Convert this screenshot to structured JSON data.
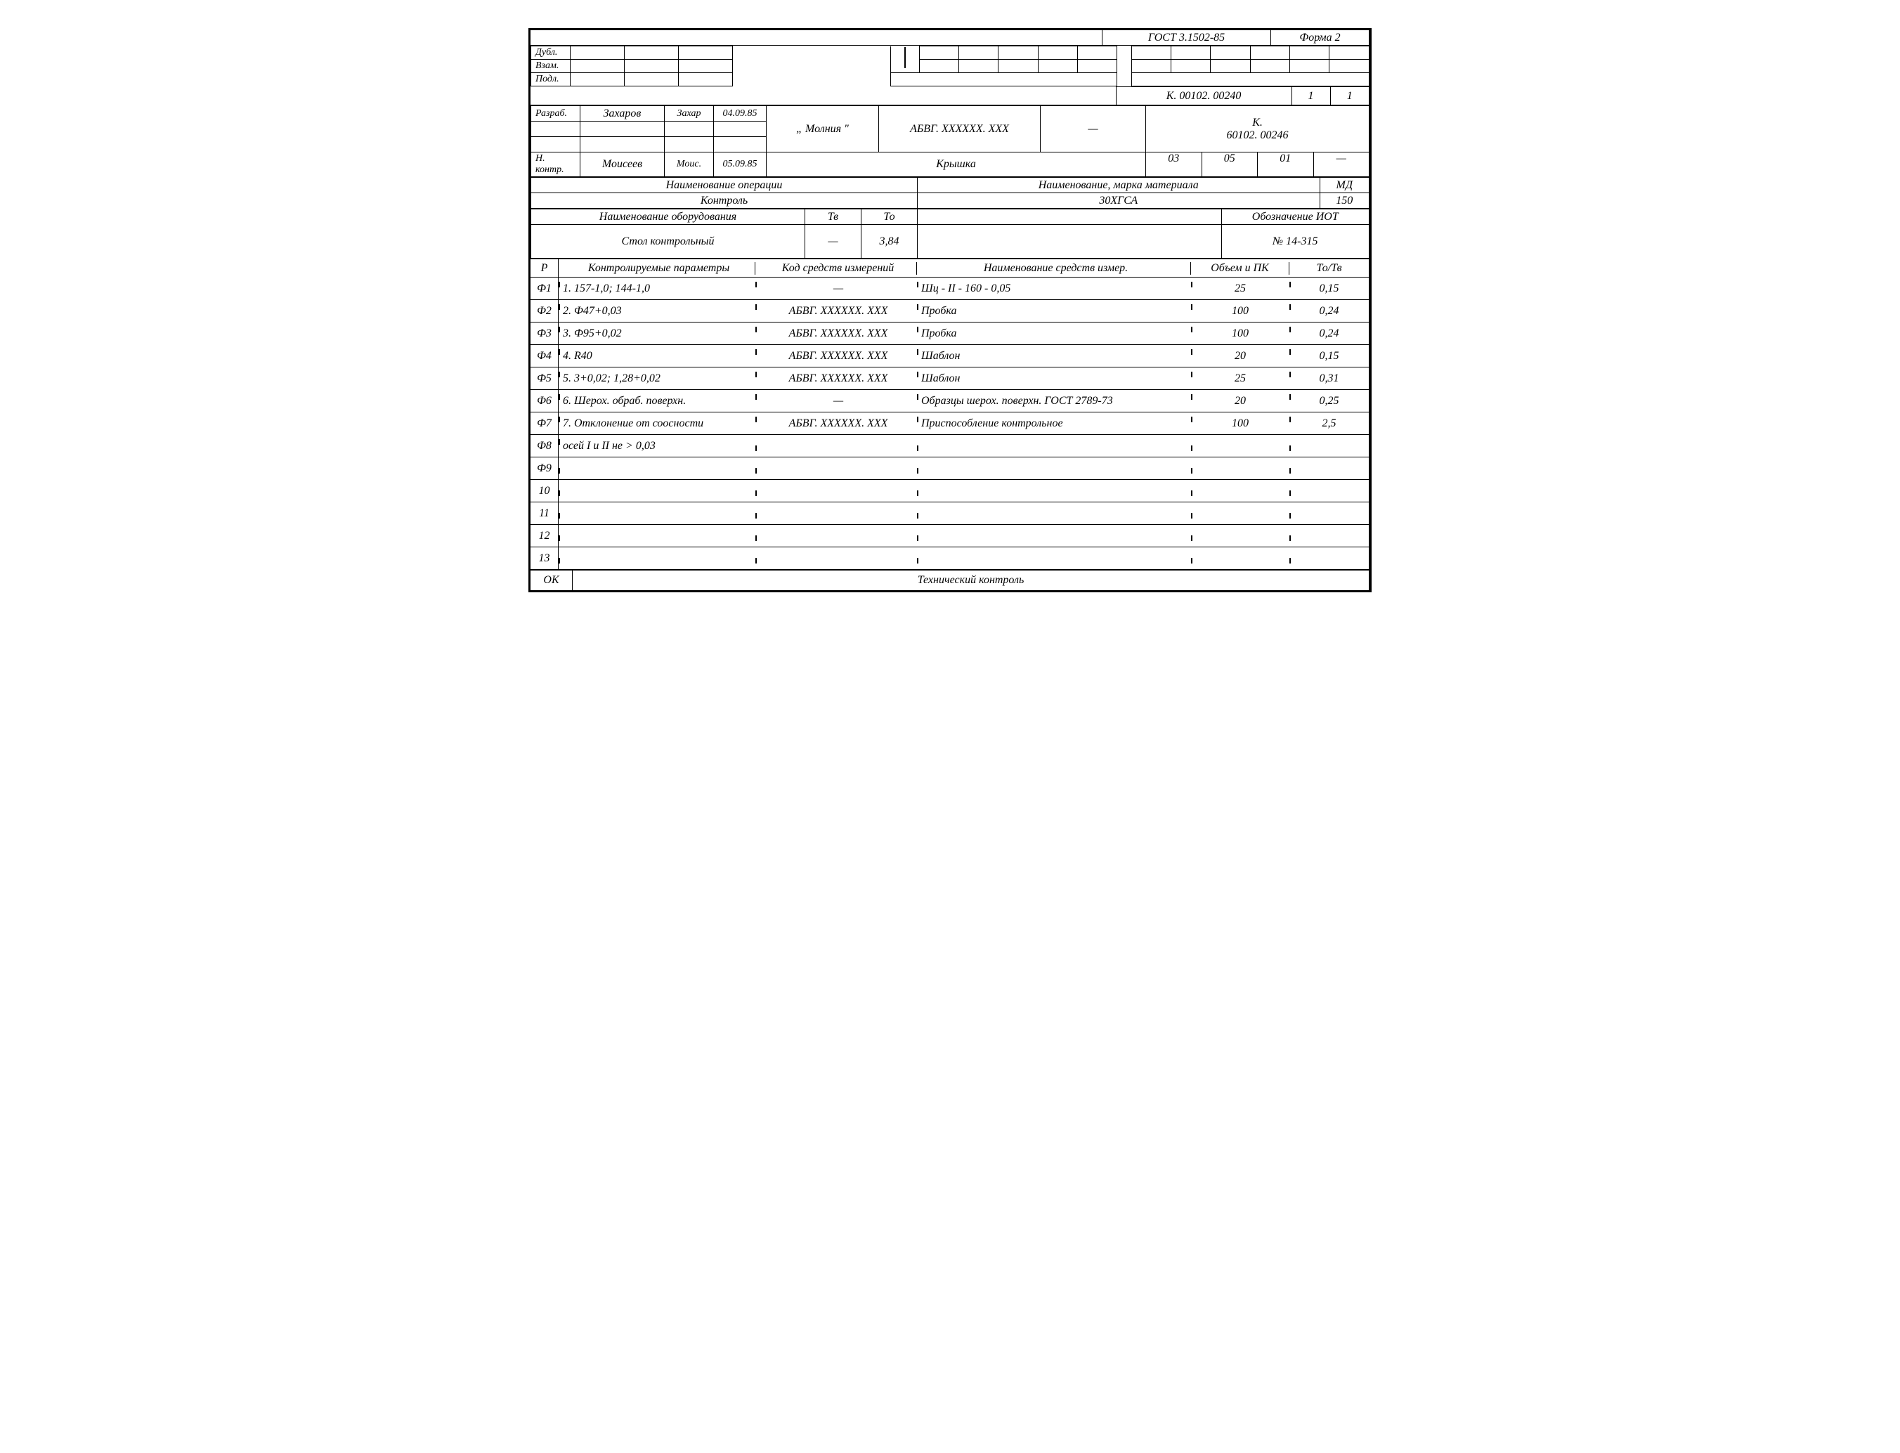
{
  "header": {
    "gost": "ГОСТ 3.1502-85",
    "forma": "Форма 2",
    "dubl": "Дубл.",
    "vzam": "Взам.",
    "podl": "Подл.",
    "doc_code": "К. 00102. 00240",
    "page": "1",
    "pages": "1"
  },
  "title_block": {
    "razrab": "Разраб.",
    "razrab_name": "Захаров",
    "razrab_sign": "Захар",
    "razrab_date": "04.09.85",
    "nkontr": "Н. контр.",
    "nkontr_name": "Моисеев",
    "nkontr_sign": "Моис.",
    "nkontr_date": "05.09.85",
    "org": "„ Молния \"",
    "product_code": "АБВГ. ХХХХХХ. ХХХ",
    "dash": "—",
    "k_code_prefix": "К.",
    "k_code": "60102. 00246",
    "part_name": "Крышка",
    "cols_03": "03",
    "cols_05": "05",
    "cols_01": "01",
    "cols_dash": "—"
  },
  "op_block": {
    "h_op": "Наименование операции",
    "h_mat": "Наименование, марка материала",
    "h_md": "МД",
    "op_name": "Контроль",
    "mat_name": "30ХГСА",
    "md_val": "150",
    "h_equip": "Наименование оборудования",
    "h_tv": "Тв",
    "h_to": "То",
    "h_iot": "Обозначение ИОТ",
    "equip_name": "Стол контрольный",
    "tv_val": "—",
    "to_val": "3,84",
    "iot_val": "№ 14-315"
  },
  "table_hdr": {
    "r": "Р",
    "param": "Контролируемые параметры",
    "code": "Код средств измерений",
    "name": "Наименование средств измер.",
    "vol": "Объем и ПК",
    "tt": "То/Тв"
  },
  "rows": [
    {
      "idx": "Ф1",
      "param": "1. 157-1,0; 144-1,0",
      "code": "—",
      "name": "Шц - II - 160 - 0,05",
      "vol": "25",
      "tt": "0,15"
    },
    {
      "idx": "Ф2",
      "param": "2. Ф47+0,03",
      "code": "АБВГ. ХХХХХХ. ХХХ",
      "name": "Пробка",
      "vol": "100",
      "tt": "0,24"
    },
    {
      "idx": "Ф3",
      "param": "3. Ф95+0,02",
      "code": "АБВГ. ХХХХХХ. ХХХ",
      "name": "Пробка",
      "vol": "100",
      "tt": "0,24"
    },
    {
      "idx": "Ф4",
      "param": "4. R40",
      "code": "АБВГ. ХХХХХХ. ХХХ",
      "name": "Шаблон",
      "vol": "20",
      "tt": "0,15"
    },
    {
      "idx": "Ф5",
      "param": "5. 3+0,02; 1,28+0,02",
      "code": "АБВГ. ХХХХХХ. ХХХ",
      "name": "Шаблон",
      "vol": "25",
      "tt": "0,31"
    },
    {
      "idx": "Ф6",
      "param": "6. Шерох. обраб. поверхн.",
      "code": "—",
      "name": "Образцы шерох. поверхн. ГОСТ 2789-73",
      "vol": "20",
      "tt": "0,25"
    },
    {
      "idx": "Ф7",
      "param": "7. Отклонение от соосности",
      "code": "АБВГ. ХХХХХХ. ХХХ",
      "name": "Приспособление контрольное",
      "vol": "100",
      "tt": "2,5"
    },
    {
      "idx": "Ф8",
      "param": "осей I и II не > 0,03",
      "code": "",
      "name": "",
      "vol": "",
      "tt": ""
    },
    {
      "idx": "Ф9",
      "param": "",
      "code": "",
      "name": "",
      "vol": "",
      "tt": ""
    },
    {
      "idx": "10",
      "param": "",
      "code": "",
      "name": "",
      "vol": "",
      "tt": ""
    },
    {
      "idx": "11",
      "param": "",
      "code": "",
      "name": "",
      "vol": "",
      "tt": ""
    },
    {
      "idx": "12",
      "param": "",
      "code": "",
      "name": "",
      "vol": "",
      "tt": ""
    },
    {
      "idx": "13",
      "param": "",
      "code": "",
      "name": "",
      "vol": "",
      "tt": ""
    }
  ],
  "footer": {
    "ok": "ОК",
    "title": "Технический контроль"
  }
}
